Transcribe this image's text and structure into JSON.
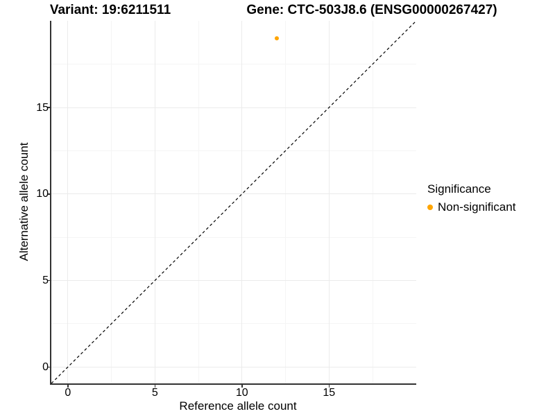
{
  "titles": {
    "variant": "Variant: 19:6211511",
    "gene": "Gene: CTC-503J8.6 (ENSG00000267427)"
  },
  "chart_data": {
    "type": "scatter",
    "xlabel": "Reference allele count",
    "ylabel": "Alternative allele count",
    "xlim": [
      -0.95,
      20.01
    ],
    "ylim": [
      -0.95,
      20.01
    ],
    "x_major_ticks": [
      0,
      5,
      10,
      15
    ],
    "y_major_ticks": [
      0,
      5,
      10,
      15
    ],
    "x_minor_ticks": [
      2.5,
      7.5,
      12.5,
      17.5
    ],
    "y_minor_ticks": [
      2.5,
      7.5,
      12.5,
      17.5
    ],
    "grid": "major+minor",
    "points": [
      {
        "x": 12,
        "y": 19,
        "series": "Non-significant",
        "color": "#FFA500"
      }
    ],
    "reference_line": {
      "type": "identity",
      "from": [
        -0.95,
        -0.95
      ],
      "to": [
        20.01,
        20.01
      ],
      "style": "dashed",
      "color": "#000000"
    },
    "legend": {
      "title": "Significance",
      "position": "right",
      "entries": [
        {
          "label": "Non-significant",
          "color": "#FFA500",
          "marker": "circle"
        }
      ]
    }
  },
  "colors": {
    "background": "#FFFFFF",
    "grid_major": "#EBEBEB",
    "grid_minor": "#F5F5F5",
    "axis_line": "#333333",
    "text": "#000000",
    "point": "#FFA500"
  }
}
